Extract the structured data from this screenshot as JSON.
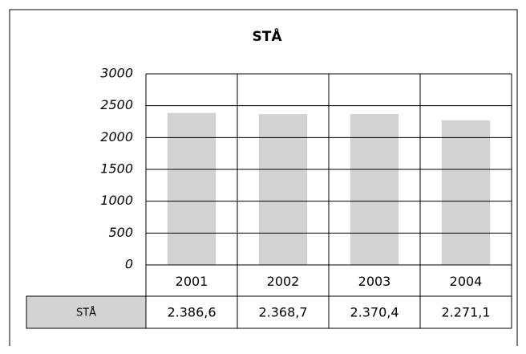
{
  "chart_data": {
    "type": "bar",
    "title": "STÅ",
    "categories": [
      "2001",
      "2002",
      "2003",
      "2004"
    ],
    "series": [
      {
        "name": "STÅ",
        "color": "#d3d3d3",
        "values": [
          2386.6,
          2368.7,
          2370.4,
          2271.1
        ],
        "value_labels": [
          "2.386,6",
          "2.368,7",
          "2.370,4",
          "2.271,1"
        ]
      }
    ],
    "ylim": [
      0,
      3000
    ],
    "yticks": [
      0,
      500,
      1000,
      1500,
      2000,
      2500,
      3000
    ],
    "grid": true
  }
}
